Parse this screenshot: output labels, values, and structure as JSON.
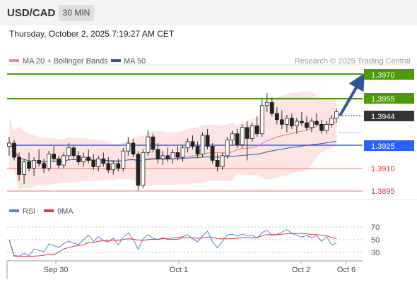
{
  "header": {
    "symbol": "USD/CAD",
    "timeframe": "30 MIN"
  },
  "timestamp": "Thursday, October 2, 2025 7:19:27 AM CET",
  "legend": {
    "ma20_label": "MA 20 + Bollinger Bands",
    "ma20_color": "#f28a8a",
    "ma50_label": "MA 50",
    "ma50_color": "#2f5597",
    "copyright": "Research © 2025 Trading Central"
  },
  "levels": {
    "resistance_2": "1.3970",
    "resistance_1": "1.3955",
    "last_price": "1.3944",
    "pivot": "1.3925",
    "support_1": "1.3910",
    "support_2": "1.3895",
    "resistance_color": "#4e9a06",
    "pivot_color": "#2962ff",
    "support_color": "#d9363e",
    "last_color": "#333333"
  },
  "rsi": {
    "rsi_label": "RSI",
    "ma_label": "9MA",
    "rsi_color": "#5b7fd6",
    "ma_color": "#d9363e",
    "scale": [
      "70",
      "50",
      "30"
    ]
  },
  "xaxis": [
    "Sep 30",
    "Oct 1",
    "Oct 2",
    "Oct 6"
  ],
  "chart_data": {
    "type": "candlestick",
    "ylim": [
      1.3888,
      1.3974
    ],
    "candles": [
      [
        1.3922,
        1.3928,
        1.3916,
        1.3924
      ],
      [
        1.3924,
        1.3926,
        1.3913,
        1.3915
      ],
      [
        1.3915,
        1.3918,
        1.39,
        1.3904
      ],
      [
        1.3904,
        1.3914,
        1.3898,
        1.3912
      ],
      [
        1.3912,
        1.3918,
        1.3906,
        1.3908
      ],
      [
        1.3908,
        1.3915,
        1.3903,
        1.3913
      ],
      [
        1.3913,
        1.392,
        1.3909,
        1.3911
      ],
      [
        1.3911,
        1.3914,
        1.3905,
        1.3908
      ],
      [
        1.3908,
        1.3919,
        1.3906,
        1.3917
      ],
      [
        1.3917,
        1.3922,
        1.3912,
        1.3914
      ],
      [
        1.3914,
        1.3916,
        1.3908,
        1.391
      ],
      [
        1.391,
        1.3918,
        1.3908,
        1.3916
      ],
      [
        1.3916,
        1.3924,
        1.3913,
        1.3921
      ],
      [
        1.3921,
        1.3923,
        1.3914,
        1.3916
      ],
      [
        1.3916,
        1.3919,
        1.391,
        1.3912
      ],
      [
        1.3912,
        1.3918,
        1.3909,
        1.3915
      ],
      [
        1.3915,
        1.392,
        1.3911,
        1.3913
      ],
      [
        1.3913,
        1.3917,
        1.3907,
        1.3909
      ],
      [
        1.3909,
        1.3916,
        1.3906,
        1.3914
      ],
      [
        1.3914,
        1.3918,
        1.3909,
        1.3911
      ],
      [
        1.3911,
        1.3915,
        1.3905,
        1.3907
      ],
      [
        1.3907,
        1.3913,
        1.3904,
        1.3911
      ],
      [
        1.3911,
        1.3914,
        1.3906,
        1.3908
      ],
      [
        1.3908,
        1.3921,
        1.3906,
        1.3919
      ],
      [
        1.3919,
        1.3928,
        1.3916,
        1.3924
      ],
      [
        1.3924,
        1.3927,
        1.3915,
        1.3917
      ],
      [
        1.3917,
        1.3919,
        1.3894,
        1.3897
      ],
      [
        1.3897,
        1.392,
        1.3895,
        1.3918
      ],
      [
        1.3918,
        1.3932,
        1.3916,
        1.3928
      ],
      [
        1.3928,
        1.393,
        1.3918,
        1.392
      ],
      [
        1.392,
        1.3924,
        1.3911,
        1.3914
      ],
      [
        1.3914,
        1.3919,
        1.391,
        1.3916
      ],
      [
        1.3916,
        1.3921,
        1.3912,
        1.3914
      ],
      [
        1.3914,
        1.392,
        1.3911,
        1.3918
      ],
      [
        1.3918,
        1.3922,
        1.3913,
        1.3915
      ],
      [
        1.3915,
        1.3923,
        1.3912,
        1.3921
      ],
      [
        1.3921,
        1.3927,
        1.3918,
        1.3925
      ],
      [
        1.3925,
        1.3929,
        1.392,
        1.3922
      ],
      [
        1.3922,
        1.3925,
        1.3915,
        1.3917
      ],
      [
        1.3917,
        1.3931,
        1.3915,
        1.3929
      ],
      [
        1.3929,
        1.3933,
        1.392,
        1.3922
      ],
      [
        1.3922,
        1.3924,
        1.3911,
        1.3913
      ],
      [
        1.3913,
        1.3917,
        1.3906,
        1.3909
      ],
      [
        1.3909,
        1.3918,
        1.3907,
        1.3916
      ],
      [
        1.3916,
        1.3928,
        1.3914,
        1.3926
      ],
      [
        1.3926,
        1.3932,
        1.3923,
        1.393
      ],
      [
        1.393,
        1.3933,
        1.3921,
        1.3923
      ],
      [
        1.3923,
        1.3936,
        1.3921,
        1.3934
      ],
      [
        1.3934,
        1.3938,
        1.3913,
        1.3927
      ],
      [
        1.3927,
        1.3937,
        1.3925,
        1.3935
      ],
      [
        1.3935,
        1.3941,
        1.3928,
        1.393
      ],
      [
        1.393,
        1.3952,
        1.3928,
        1.3948
      ],
      [
        1.3948,
        1.3956,
        1.3944,
        1.395
      ],
      [
        1.395,
        1.3953,
        1.3941,
        1.3943
      ],
      [
        1.3943,
        1.3947,
        1.3936,
        1.3939
      ],
      [
        1.3939,
        1.3945,
        1.3933,
        1.3936
      ],
      [
        1.3936,
        1.3942,
        1.3931,
        1.394
      ],
      [
        1.394,
        1.3943,
        1.3933,
        1.3935
      ],
      [
        1.3935,
        1.394,
        1.393,
        1.3938
      ],
      [
        1.3938,
        1.3944,
        1.3935,
        1.3937
      ],
      [
        1.3937,
        1.3941,
        1.3932,
        1.3934
      ],
      [
        1.3934,
        1.394,
        1.3931,
        1.3938
      ],
      [
        1.3938,
        1.3943,
        1.3935,
        1.3936
      ],
      [
        1.3936,
        1.3939,
        1.393,
        1.3932
      ],
      [
        1.3932,
        1.3938,
        1.393,
        1.3936
      ],
      [
        1.3936,
        1.3942,
        1.3934,
        1.394
      ],
      [
        1.394,
        1.3946,
        1.3937,
        1.3944
      ]
    ]
  }
}
